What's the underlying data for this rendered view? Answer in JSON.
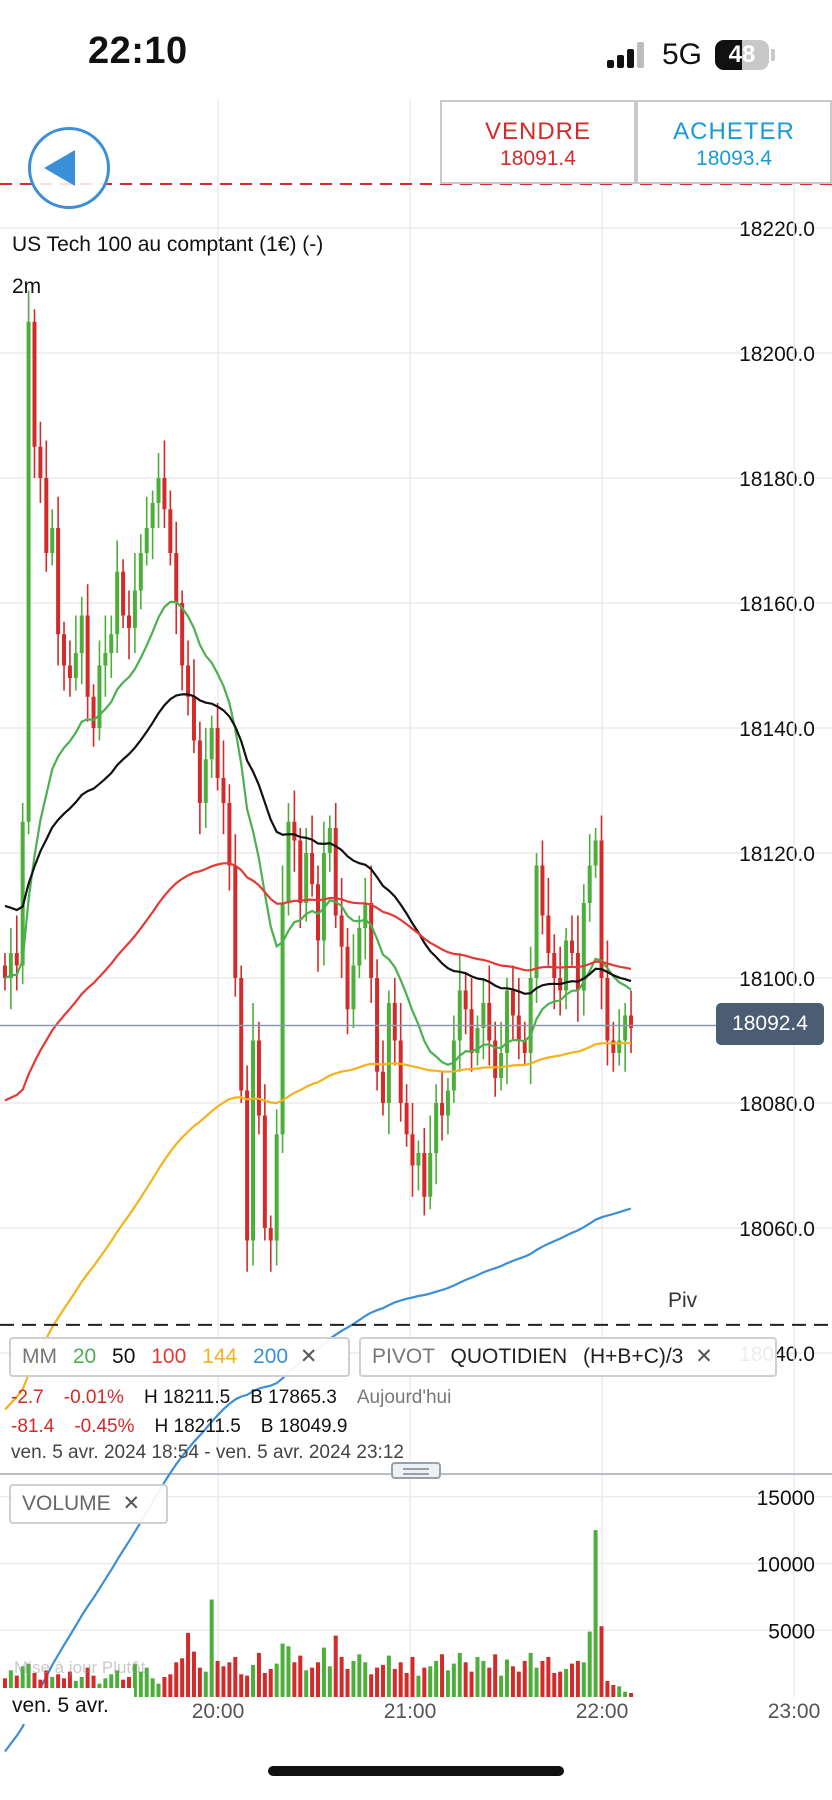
{
  "status_bar": {
    "time": "22:10",
    "network": "5G",
    "battery": "48"
  },
  "header": {
    "sell_label": "VENDRE",
    "sell_price": "18091.4",
    "buy_label": "ACHETER",
    "buy_price": "18093.4"
  },
  "instrument": "US Tech 100 au comptant (1€) (-)",
  "period": "2m",
  "current_price": "18092.4",
  "pivot_label": "Piv",
  "indicators": {
    "mm": {
      "name": "MM",
      "p20": "20",
      "p50": "50",
      "p100": "100",
      "p144": "144",
      "p200": "200",
      "close": "✕"
    },
    "pivot": {
      "name": "PIVOT",
      "mode": "QUOTIDIEN",
      "formula": "(H+B+C)/3",
      "close": "✕"
    },
    "volume": {
      "name": "VOLUME",
      "close": "✕"
    }
  },
  "stats": {
    "row1": {
      "change": "-2.7",
      "pct": "-0.01%",
      "high": "H 18211.5",
      "low": "B 17865.3",
      "period": "Aujourd'hui"
    },
    "row2": {
      "change": "-81.4",
      "pct": "-0.45%",
      "high": "H 18211.5",
      "low": "B 18049.9"
    },
    "range": "ven. 5 avr. 2024 18:54 - ven. 5 avr. 2024 23:12"
  },
  "date_label": "ven. 5 avr.",
  "watermark": "Mise à jour Plutôt",
  "colors": {
    "up": "#4caf3a",
    "down": "#d42a2a",
    "ma20": "#4caf50",
    "ma50": "#111111",
    "ma100": "#e53935",
    "ma144": "#f5b21b",
    "ma200": "#3b8fd8",
    "accent": "#3b8fd8"
  },
  "chart_data": {
    "type": "candlestick",
    "price_axis": {
      "ticks": [
        18220.0,
        18200.0,
        18180.0,
        18160.0,
        18140.0,
        18120.0,
        18100.0,
        18080.0,
        18060.0,
        18040.0
      ],
      "ylim": [
        18036,
        18232
      ]
    },
    "time_axis": {
      "ticks": [
        "20:00",
        "21:00",
        "22:00",
        "23:00"
      ]
    },
    "volume_axis": {
      "ticks": [
        15000,
        10000,
        5000
      ],
      "ylim": [
        0,
        16000
      ]
    },
    "pivot_level": 18044.5,
    "last_price": 18092.4,
    "series": {
      "closes": [
        18100,
        18104,
        18102,
        18125,
        18205,
        18185,
        18180,
        18168,
        18172,
        18155,
        18150,
        18148,
        18152,
        18158,
        18145,
        18140,
        18150,
        18152,
        18155,
        18165,
        18158,
        18156,
        18162,
        18168,
        18172,
        18176,
        18180,
        18175,
        18168,
        18160,
        18150,
        18145,
        18138,
        18128,
        18135,
        18140,
        18132,
        18128,
        18118,
        18100,
        18082,
        18058,
        18090,
        18078,
        18060,
        18058,
        18075,
        18112,
        18125,
        18122,
        18112,
        18120,
        18115,
        18106,
        18120,
        18124,
        18110,
        18105,
        18095,
        18102,
        18108,
        18112,
        18100,
        18085,
        18080,
        18096,
        18090,
        18080,
        18075,
        18070,
        18072,
        18065,
        18072,
        18080,
        18078,
        18082,
        18090,
        18098,
        18095,
        18088,
        18092,
        18096,
        18090,
        18084,
        18088,
        18098,
        18094,
        18090,
        18088,
        18100,
        18118,
        18110,
        18104,
        18100,
        18098,
        18106,
        18104,
        18098,
        18112,
        18118,
        18122,
        18100,
        18090,
        18088,
        18090,
        18094,
        18092
      ],
      "volume": [
        1400,
        2000,
        1600,
        2300,
        2500,
        1800,
        1300,
        2000,
        1500,
        1700,
        1400,
        1900,
        1200,
        1500,
        2200,
        1600,
        1000,
        1400,
        1700,
        2000,
        1300,
        1500,
        2500,
        1900,
        2200,
        1400,
        1000,
        1500,
        1700,
        2600,
        2900,
        4800,
        3400,
        2200,
        1900,
        7300,
        2700,
        2300,
        2600,
        3000,
        1700,
        1600,
        2400,
        3300,
        1800,
        2100,
        2500,
        4000,
        3800,
        2600,
        3100,
        2000,
        2200,
        2600,
        3700,
        2300,
        4600,
        3000,
        2100,
        2700,
        3200,
        2600,
        1700,
        2200,
        2400,
        3100,
        2100,
        2600,
        1800,
        3000,
        1600,
        2200,
        2300,
        2700,
        3200,
        2000,
        2500,
        3300,
        2600,
        1900,
        3000,
        2700,
        2200,
        3200,
        1600,
        2800,
        2300,
        1900,
        2700,
        3300,
        2200,
        2700,
        3000,
        1800,
        1900,
        2100,
        2500,
        2700,
        2600,
        4900,
        12500,
        5300,
        1200,
        900,
        800,
        400,
        300
      ]
    }
  }
}
